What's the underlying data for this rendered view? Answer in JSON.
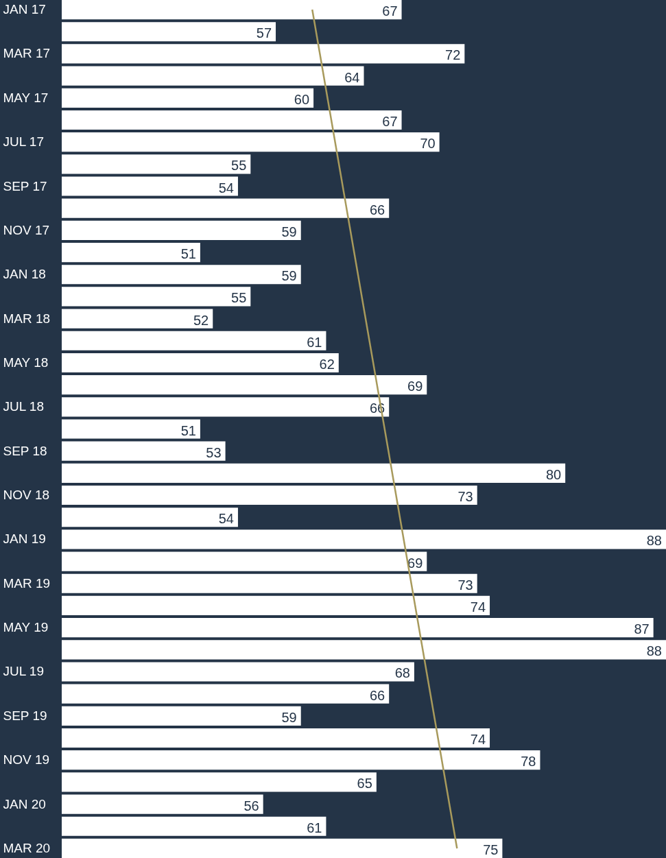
{
  "chart_data": {
    "type": "bar",
    "orientation": "horizontal",
    "tick_labels": "y",
    "categories": [
      "JAN 17",
      null,
      "MAR 17",
      null,
      "MAY 17",
      null,
      "JUL 17",
      null,
      "SEP 17",
      null,
      "NOV 17",
      null,
      "JAN 18",
      null,
      "MAR 18",
      null,
      "MAY 18",
      null,
      "JUL 18",
      null,
      "SEP 18",
      null,
      "NOV 18",
      null,
      "JAN 19",
      null,
      "MAR 19",
      null,
      "MAY 19",
      null,
      "JUL 19",
      null,
      "SEP 19",
      null,
      "NOV 19",
      null,
      "JAN 20",
      null,
      "MAR 20"
    ],
    "xlim": [
      40,
      88
    ],
    "series": [
      {
        "type": "line",
        "color": "#a89a5c",
        "values": [
          59.9,
          null,
          null,
          null,
          null,
          null,
          null,
          null,
          null,
          null,
          null,
          null,
          null,
          null,
          null,
          null,
          null,
          null,
          null,
          null,
          null,
          null,
          null,
          null,
          null,
          null,
          null,
          null,
          null,
          null,
          null,
          null,
          null,
          null,
          null,
          null,
          null,
          null,
          71.4
        ]
      },
      {
        "type": "bar",
        "color": "#ffffff",
        "values": [
          67,
          57,
          72,
          64,
          60,
          67,
          70,
          55,
          54,
          66,
          59,
          51,
          59,
          55,
          52,
          61,
          62,
          69,
          66,
          51,
          53,
          80,
          73,
          54,
          88,
          69,
          73,
          74,
          87,
          88,
          68,
          66,
          59,
          74,
          78,
          65,
          56,
          61,
          75
        ],
        "value_labels": [
          "67",
          "57",
          "72",
          "64",
          "60",
          "67",
          "70",
          "55",
          "54",
          "66",
          "59",
          "51",
          "59",
          "55",
          "52",
          "61",
          "62",
          "69",
          "66",
          "51",
          "53",
          "80",
          "73",
          "54",
          "88",
          "69",
          "73",
          "74",
          "87",
          "88",
          "68",
          "66",
          "59",
          "74",
          "78",
          "65",
          "56",
          "61",
          "75"
        ]
      }
    ]
  }
}
